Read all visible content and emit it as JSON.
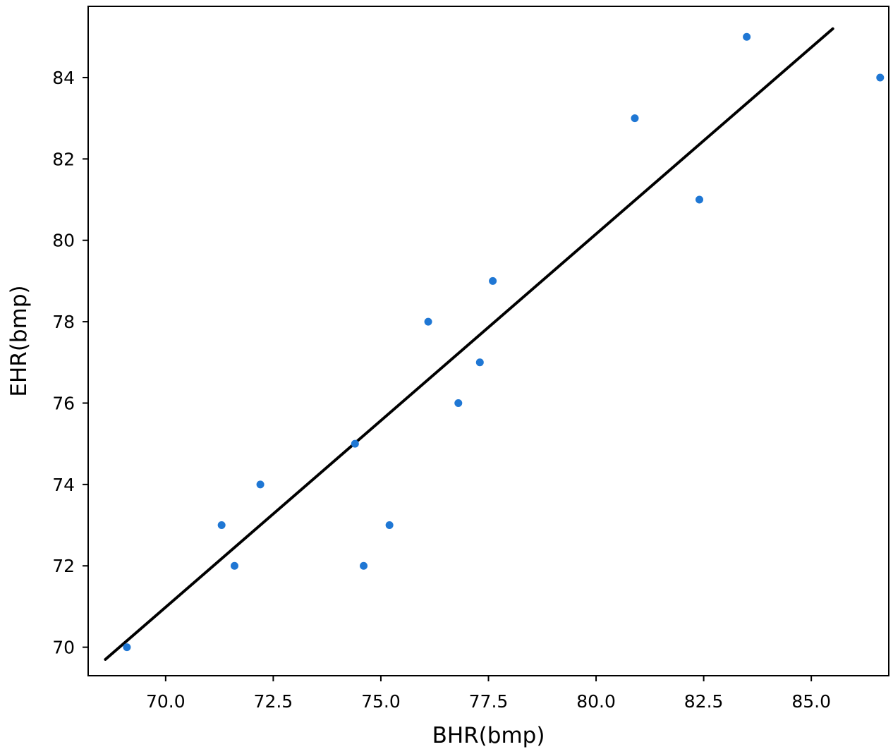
{
  "chart_data": {
    "type": "scatter",
    "title": "",
    "xlabel": "BHR(bmp)",
    "ylabel": "EHR(bmp)",
    "xlim": [
      68.2,
      86.8
    ],
    "ylim": [
      69.3,
      85.75
    ],
    "xticks": [
      70.0,
      72.5,
      75.0,
      77.5,
      80.0,
      82.5,
      85.0
    ],
    "xtick_labels": [
      "70.0",
      "72.5",
      "75.0",
      "77.5",
      "80.0",
      "82.5",
      "85.0"
    ],
    "yticks": [
      70,
      72,
      74,
      76,
      78,
      80,
      82,
      84
    ],
    "ytick_labels": [
      "70",
      "72",
      "74",
      "76",
      "78",
      "80",
      "82",
      "84"
    ],
    "grid": false,
    "colors": {
      "points": "#1f77d4",
      "line": "#000000",
      "axes": "#000000"
    },
    "series": [
      {
        "type": "scatter",
        "points": [
          {
            "x": 69.1,
            "y": 70
          },
          {
            "x": 71.3,
            "y": 73
          },
          {
            "x": 71.6,
            "y": 72
          },
          {
            "x": 72.2,
            "y": 74
          },
          {
            "x": 74.4,
            "y": 75
          },
          {
            "x": 74.6,
            "y": 72
          },
          {
            "x": 75.2,
            "y": 73
          },
          {
            "x": 76.1,
            "y": 78
          },
          {
            "x": 76.8,
            "y": 76
          },
          {
            "x": 77.3,
            "y": 77
          },
          {
            "x": 77.6,
            "y": 79
          },
          {
            "x": 80.9,
            "y": 83
          },
          {
            "x": 82.4,
            "y": 81
          },
          {
            "x": 83.5,
            "y": 85
          },
          {
            "x": 86.6,
            "y": 84
          }
        ]
      },
      {
        "type": "line",
        "points": [
          {
            "x": 68.6,
            "y": 69.7
          },
          {
            "x": 85.5,
            "y": 85.2
          }
        ]
      }
    ]
  }
}
